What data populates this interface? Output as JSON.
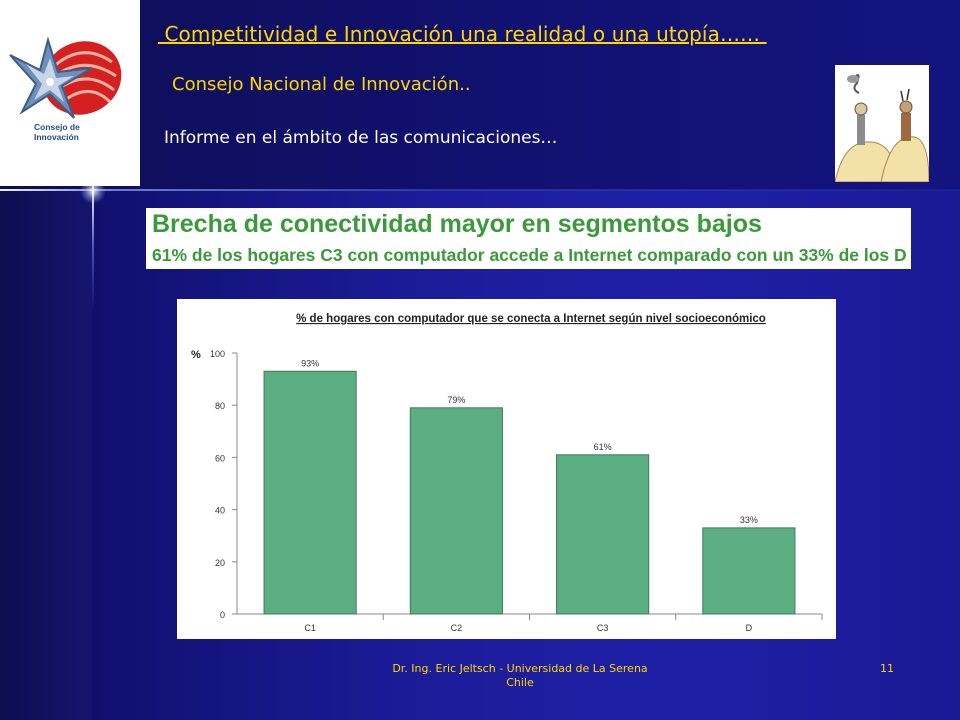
{
  "slide": {
    "title": " Competitividad e Innovación una realidad o una utopía…… ",
    "subtitle": "Consejo Nacional de Innovación..",
    "informe": "Informe en el ámbito de las comunicaciones…",
    "footer_line1": "Dr. Ing. Eric Jeltsch - Universidad de La Serena",
    "footer_line2": "Chile",
    "page_number": "11"
  },
  "logo": {
    "line1": "Consejo de",
    "line2": "Innovación"
  },
  "headline": {
    "title": "Brecha de conectividad mayor en segmentos bajos",
    "subtitle": "61% de los hogares C3 con computador accede a Internet comparado con un 33% de los D"
  },
  "colors": {
    "background": "#1c1c9a",
    "title_yellow": "#ffd700",
    "headline_green": "#3a9a3a",
    "bar_green": "#5bae82"
  },
  "chart_data": {
    "type": "bar",
    "title": "% de hogares con computador que se conecta a Internet según nivel socioeconómico",
    "ylabel": "%",
    "xlabel": "",
    "categories": [
      "C1",
      "C2",
      "C3",
      "D"
    ],
    "values": [
      93,
      79,
      61,
      33
    ],
    "data_labels": [
      "93%",
      "79%",
      "61%",
      "33%"
    ],
    "ylim": [
      0,
      100
    ],
    "yticks": [
      0,
      20,
      40,
      60,
      80,
      100
    ],
    "grid": false,
    "legend": "none"
  }
}
